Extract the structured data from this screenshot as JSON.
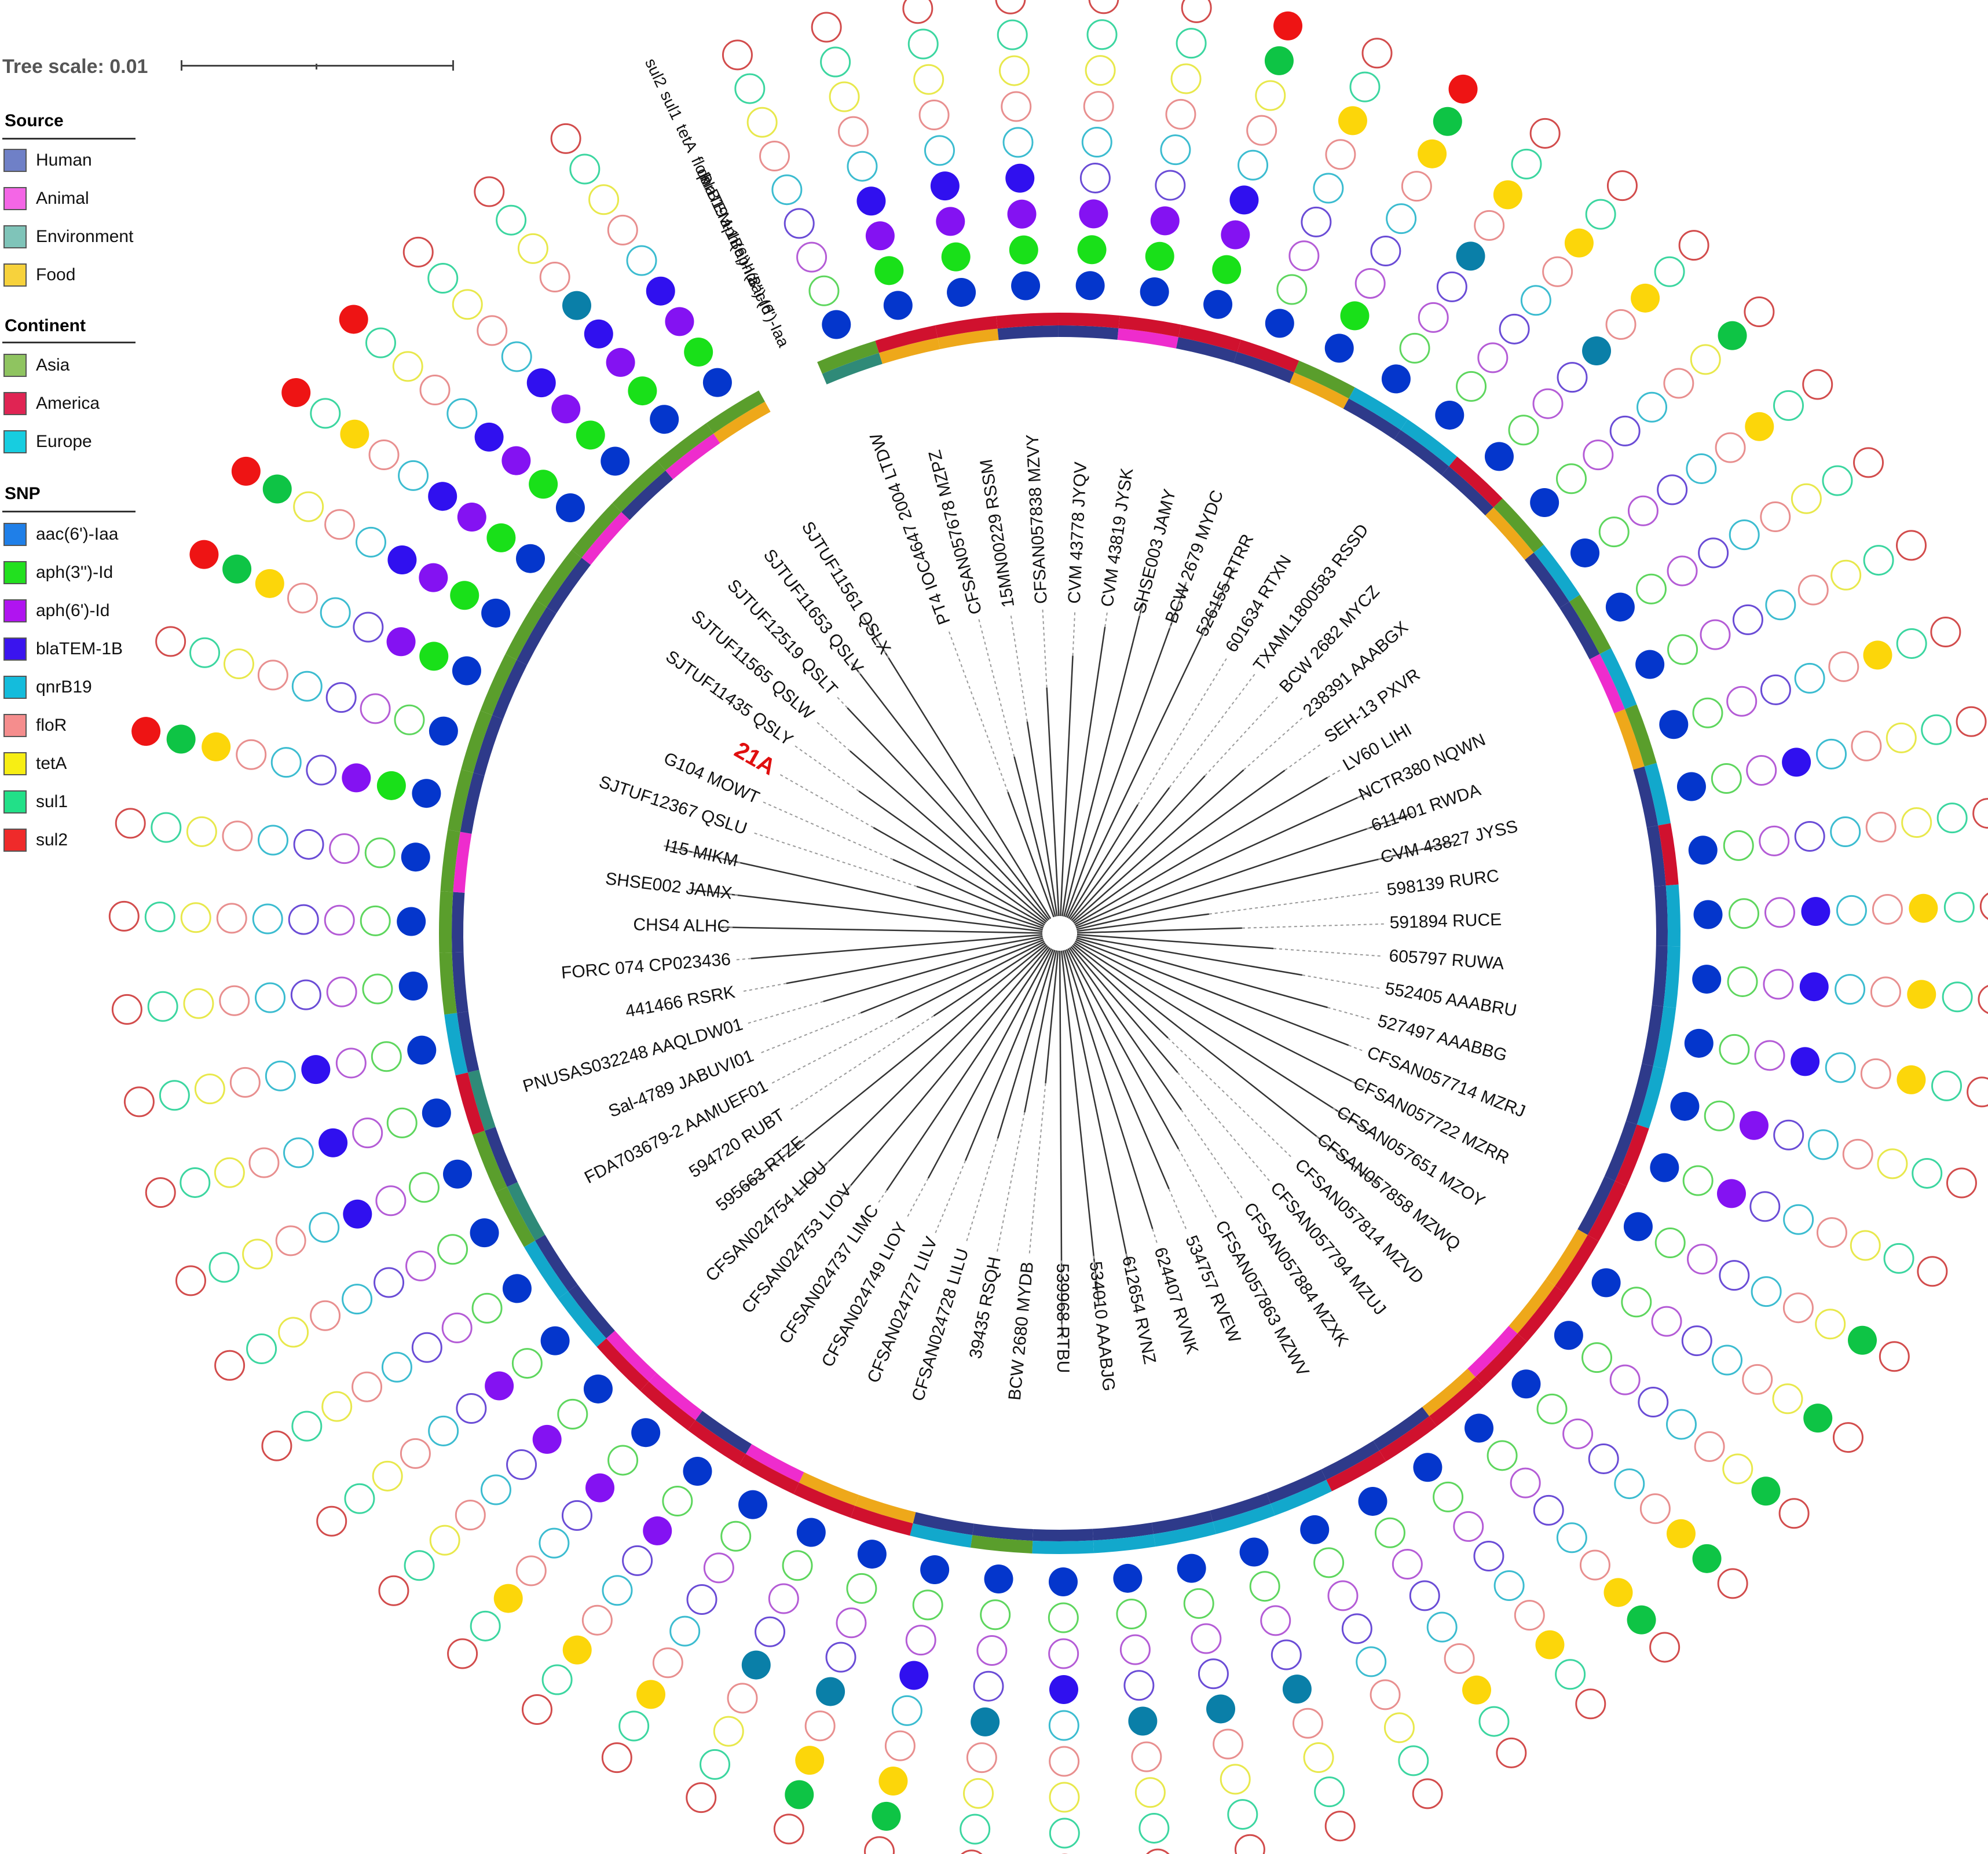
{
  "scale": {
    "label": "Tree scale: 0.01"
  },
  "legend": {
    "source": {
      "title": "Source",
      "items": [
        {
          "label": "Human",
          "color": "#6f80c7"
        },
        {
          "label": "Animal",
          "color": "#f466e6"
        },
        {
          "label": "Environment",
          "color": "#7fc4b9"
        },
        {
          "label": "Food",
          "color": "#f7d23c"
        }
      ]
    },
    "continent": {
      "title": "Continent",
      "items": [
        {
          "label": "Asia",
          "color": "#8fc460"
        },
        {
          "label": "America",
          "color": "#e02453"
        },
        {
          "label": "Europe",
          "color": "#17cde0"
        }
      ]
    },
    "snp": {
      "title": "SNP",
      "items": [
        {
          "label": "aac(6')-Iaa",
          "color": "#1f7fe8"
        },
        {
          "label": "aph(3'')-Id",
          "color": "#22e01f"
        },
        {
          "label": "aph(6')-Id",
          "color": "#b014f0"
        },
        {
          "label": "blaTEM-1B",
          "color": "#3a14ee"
        },
        {
          "label": "qnrB19",
          "color": "#14bcdc"
        },
        {
          "label": "floR",
          "color": "#f58d8d"
        },
        {
          "label": "tetA",
          "color": "#f7ee14"
        },
        {
          "label": "sul1",
          "color": "#22e088"
        },
        {
          "label": "sul2",
          "color": "#ef2a2a"
        }
      ]
    }
  },
  "gene_columns": [
    "aac(6')-Iaa",
    "aph(3'')-Id",
    "aph(6')-Id",
    "blaTEM-1B",
    "qnrB19",
    "floR",
    "tetA",
    "sul1",
    "sul2"
  ],
  "gene_filled_colors": [
    "#0436cc",
    "#19e019",
    "#8412f2",
    "#3010ef",
    "#0a7fa8",
    "#f04848",
    "#fcd60a",
    "#0ec445",
    "#ee1414"
  ],
  "gene_outline_colors": [
    "#2a6ad8",
    "#5ed65e",
    "#b45cd6",
    "#6a4cd6",
    "#3cbcd0",
    "#e88f8f",
    "#e8e84c",
    "#3cd6a0",
    "#d24c4c"
  ],
  "highlight": {
    "label": "21A",
    "color": "#e00f0f"
  },
  "leaves": [
    {
      "label": "PT4 IOC4647 2004 LTDW",
      "source": "Environment",
      "continent": "Asia",
      "genes": "100000000"
    },
    {
      "label": "CFSAN057678 MZPZ",
      "source": "Food",
      "continent": "America",
      "genes": "111100000"
    },
    {
      "label": "15MN00229 RSSM",
      "source": "Food",
      "continent": "America",
      "genes": "111100000"
    },
    {
      "label": "CFSAN057838 MZVY",
      "source": "Human",
      "continent": "America",
      "genes": "111100000"
    },
    {
      "label": "CVM 43778 JYQV",
      "source": "Human",
      "continent": "America",
      "genes": "111000000"
    },
    {
      "label": "CVM 43819 JYSK",
      "source": "Animal",
      "continent": "America",
      "genes": "111000000"
    },
    {
      "label": "SHSE003 JAMY",
      "source": "Human",
      "continent": "America",
      "genes": "111100011"
    },
    {
      "label": "BCW 2679 MYDC",
      "source": "Human",
      "continent": "America",
      "genes": "100000100"
    },
    {
      "label": "526155 RTRR",
      "source": "Food",
      "continent": "Asia",
      "genes": "110000111"
    },
    {
      "label": "601634 RTXN",
      "source": "Human",
      "continent": "Europe",
      "genes": "100010100"
    },
    {
      "label": "TXAML1800583 RSSD",
      "source": "Human",
      "continent": "Europe",
      "genes": "100000100"
    },
    {
      "label": "BCW 2682 MYCZ",
      "source": "Human",
      "continent": "America",
      "genes": "100010100"
    },
    {
      "label": "238391 AAABGX",
      "source": "Food",
      "continent": "Asia",
      "genes": "100000010"
    },
    {
      "label": "SEH-13 PXVR",
      "source": "Human",
      "continent": "Europe",
      "genes": "100000100"
    },
    {
      "label": "LV60 LIHI",
      "source": "Human",
      "continent": "Asia",
      "genes": "100000000"
    },
    {
      "label": "NCTR380 NQWN",
      "source": "Animal",
      "continent": "Europe",
      "genes": "100000000"
    },
    {
      "label": "611401 RWDA",
      "source": "Food",
      "continent": "Asia",
      "genes": "100000100"
    },
    {
      "label": "CVM 43827 JYSS",
      "source": "Human",
      "continent": "Europe",
      "genes": "100100000"
    },
    {
      "label": "598139 RURC",
      "source": "Human",
      "continent": "America",
      "genes": "100000000"
    },
    {
      "label": "591894 RUCE",
      "source": "Human",
      "continent": "Europe",
      "genes": "100100100"
    },
    {
      "label": "605797 RUWA",
      "source": "Human",
      "continent": "Europe",
      "genes": "100100100"
    },
    {
      "label": "552405 AAABRU",
      "source": "Human",
      "continent": "Europe",
      "genes": "100100100"
    },
    {
      "label": "527497 AAABBG",
      "source": "Human",
      "continent": "Europe",
      "genes": "101000000"
    },
    {
      "label": "CFSAN057714 MZRJ",
      "source": "Human",
      "continent": "America",
      "genes": "101000000"
    },
    {
      "label": "CFSAN057722 MZRR",
      "source": "Human",
      "continent": "America",
      "genes": "100000010"
    },
    {
      "label": "CFSAN057651 MZOY",
      "source": "Food",
      "continent": "America",
      "genes": "100000010"
    },
    {
      "label": "CFSAN057858 MZWQ",
      "source": "Food",
      "continent": "America",
      "genes": "100000010"
    },
    {
      "label": "CFSAN057814 MZVD",
      "source": "Animal",
      "continent": "America",
      "genes": "100000110"
    },
    {
      "label": "CFSAN057794 MZUJ",
      "source": "Food",
      "continent": "America",
      "genes": "100000110"
    },
    {
      "label": "CFSAN057884 MZXK",
      "source": "Human",
      "continent": "America",
      "genes": "100000100"
    },
    {
      "label": "CFSAN057863 MZWV",
      "source": "Human",
      "continent": "America",
      "genes": "100000100"
    },
    {
      "label": "534757 RVEW",
      "source": "Human",
      "continent": "Europe",
      "genes": "100000000"
    },
    {
      "label": "624407 RVNK",
      "source": "Human",
      "continent": "Europe",
      "genes": "100010000"
    },
    {
      "label": "612654 RVNZ",
      "source": "Human",
      "continent": "Europe",
      "genes": "100010000"
    },
    {
      "label": "534010 AAABJG",
      "source": "Human",
      "continent": "Europe",
      "genes": "100010000"
    },
    {
      "label": "539968 RTBU",
      "source": "Human",
      "continent": "Europe",
      "genes": "100100000"
    },
    {
      "label": "BCW 2680 MYDB",
      "source": "Human",
      "continent": "Asia",
      "genes": "100010000"
    },
    {
      "label": "39435 RSQH",
      "source": "Human",
      "continent": "Europe",
      "genes": "100100110"
    },
    {
      "label": "CFSAN024728 LILU",
      "source": "Food",
      "continent": "America",
      "genes": "100010110"
    },
    {
      "label": "CFSAN024727 LILV",
      "source": "Food",
      "continent": "America",
      "genes": "100010000"
    },
    {
      "label": "CFSAN024749 LIOY",
      "source": "Animal",
      "continent": "America",
      "genes": "100000100"
    },
    {
      "label": "CFSAN024737 LIMC",
      "source": "Human",
      "continent": "America",
      "genes": "101000100"
    },
    {
      "label": "CFSAN024753 LIOV",
      "source": "Animal",
      "continent": "America",
      "genes": "101000100"
    },
    {
      "label": "CFSAN024754 LIOU",
      "source": "Animal",
      "continent": "America",
      "genes": "101000000"
    },
    {
      "label": "595663 RTZE",
      "source": "Human",
      "continent": "Europe",
      "genes": "101000000"
    },
    {
      "label": "594720 RUBT",
      "source": "Human",
      "continent": "Europe",
      "genes": "100000000"
    },
    {
      "label": "FDA703679-2 AAMUEF01",
      "source": "Environment",
      "continent": "Asia",
      "genes": "100000000"
    },
    {
      "label": "Sal-4789 JABUVI01",
      "source": "Human",
      "continent": "Asia",
      "genes": "100100000"
    },
    {
      "label": "PNUSAS032248 AAQLDW01",
      "source": "Environment",
      "continent": "America",
      "genes": "100100000"
    },
    {
      "label": "441466 RSRK",
      "source": "Human",
      "continent": "Europe",
      "genes": "100100000"
    },
    {
      "label": "FORC 074 CP023436",
      "source": "Human",
      "continent": "Asia",
      "genes": "100000000"
    },
    {
      "label": "CHS4 ALHC",
      "source": "Human",
      "continent": "Asia",
      "genes": "100000000"
    },
    {
      "label": "SHSE002 JAMX",
      "source": "Animal",
      "continent": "Asia",
      "genes": "100000000"
    },
    {
      "label": "I15 MIKM",
      "source": "Human",
      "continent": "Asia",
      "genes": "111000111"
    },
    {
      "label": "SJTUF12367 QSLU",
      "source": "Human",
      "continent": "Asia",
      "genes": "100000000"
    },
    {
      "label": "G104 MOWT",
      "source": "Human",
      "continent": "Asia",
      "genes": "111000111"
    },
    {
      "label": "21A",
      "source": "Human",
      "continent": "Asia",
      "genes": "111100011"
    },
    {
      "label": "SJTUF11435 QSLY",
      "source": "Human",
      "continent": "Asia",
      "genes": "111100101"
    },
    {
      "label": "SJTUF11565 QSLW",
      "source": "Animal",
      "continent": "Asia",
      "genes": "111100001"
    },
    {
      "label": "SJTUF12519 QSLT",
      "source": "Human",
      "continent": "Asia",
      "genes": "111100000"
    },
    {
      "label": "SJTUF11653 QSLV",
      "source": "Animal",
      "continent": "Asia",
      "genes": "111110000"
    },
    {
      "label": "SJTUF11561 QSLX",
      "source": "Food",
      "continent": "Asia",
      "genes": "111100000"
    }
  ],
  "gene_column_labels": [
    "aac(6')-Iaa",
    "aph(3'')-Id",
    "aph(6')-Id",
    "blaTEM-1B",
    "qnrB19",
    "floR",
    "tetA",
    "sul1",
    "sul2"
  ]
}
